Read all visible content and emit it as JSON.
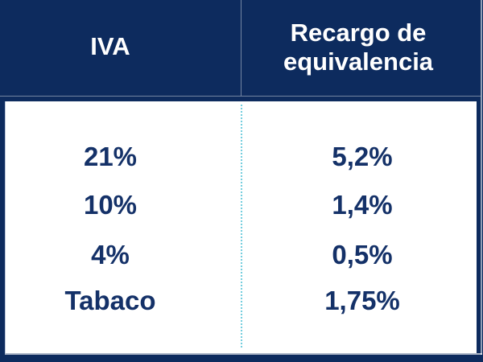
{
  "table": {
    "headers": [
      {
        "label": "IVA"
      },
      {
        "label": "Recargo de equivalencia"
      }
    ],
    "rows": [
      {
        "iva": "21%",
        "recargo": "5,2%"
      },
      {
        "iva": "10%",
        "recargo": "1,4%"
      },
      {
        "iva": "4%",
        "recargo": "0,5%"
      },
      {
        "iva": "Tabaco",
        "recargo": "1,75%"
      }
    ]
  },
  "colors": {
    "background": "#0d2b5e",
    "body_text": "#143168",
    "dotted_divider": "#74cede"
  }
}
